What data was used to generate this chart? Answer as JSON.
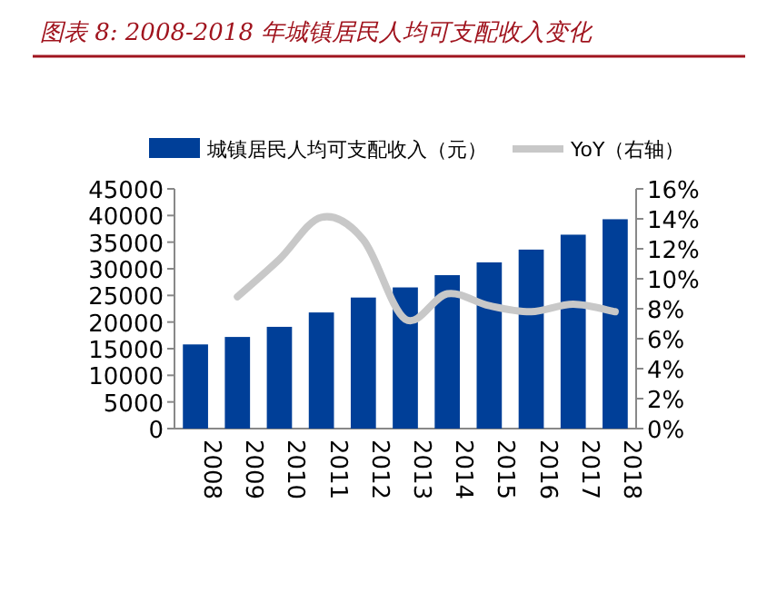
{
  "chart_data": {
    "type": "bar",
    "title": "图表 8:  2008-2018 年城镇居民人均可支配收入变化",
    "categories": [
      "2008",
      "2009",
      "2010",
      "2011",
      "2012",
      "2013",
      "2014",
      "2015",
      "2016",
      "2017",
      "2018"
    ],
    "series": [
      {
        "name": "城镇居民人均可支配收入（元）",
        "color": "#003f98",
        "values": [
          15800,
          17200,
          19100,
          21800,
          24600,
          26500,
          28800,
          31200,
          33600,
          36400,
          39300
        ]
      },
      {
        "name": "YoY（右轴）",
        "type": "line",
        "axis": "y2",
        "color": "#c8c8c8",
        "values": [
          null,
          8.8,
          11.3,
          14.1,
          12.6,
          7.3,
          9.0,
          8.2,
          7.8,
          8.3,
          7.8
        ]
      }
    ],
    "ylim": [
      0,
      45000
    ],
    "yticks": [
      0,
      5000,
      10000,
      15000,
      20000,
      25000,
      30000,
      35000,
      40000,
      45000
    ],
    "y2lim": [
      0,
      16
    ],
    "y2ticks": [
      {
        "value": 0,
        "label": "0%"
      },
      {
        "value": 2,
        "label": "2%"
      },
      {
        "value": 4,
        "label": "4%"
      },
      {
        "value": 6,
        "label": "6%"
      },
      {
        "value": 8,
        "label": "8%"
      },
      {
        "value": 10,
        "label": "10%"
      },
      {
        "value": 12,
        "label": "12%"
      },
      {
        "value": 14,
        "label": "14%"
      },
      {
        "value": 16,
        "label": "16%"
      }
    ],
    "legend": "top",
    "grid": false
  }
}
